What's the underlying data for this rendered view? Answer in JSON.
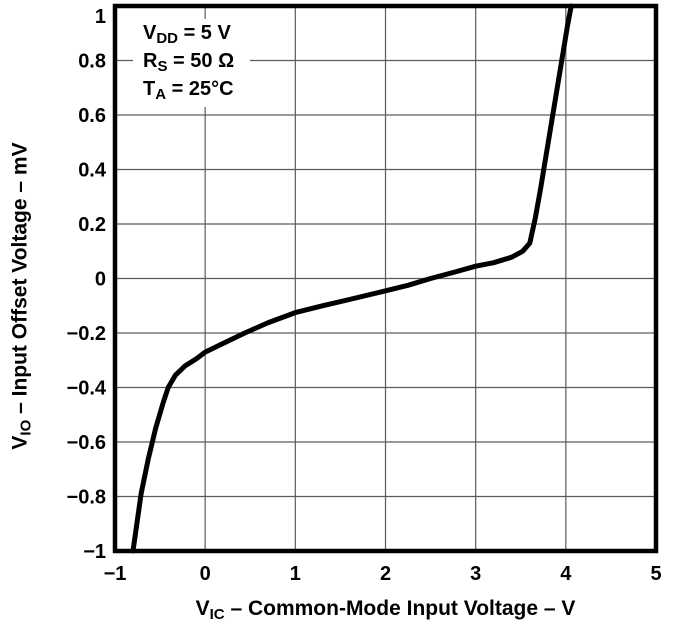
{
  "figure": {
    "background": "#ffffff",
    "conditions": [
      {
        "sym": "V",
        "sub": "DD",
        "rest": " = 5 V"
      },
      {
        "sym": "R",
        "sub": "S",
        "rest": " = 50 Ω"
      },
      {
        "sym": "T",
        "sub": "A",
        "rest": " = 25°C"
      }
    ],
    "y_title": {
      "sym": "V",
      "sub": "IO",
      "rest": " – Input Offset Voltage – mV"
    },
    "x_title": {
      "sym": "V",
      "sub": "IC",
      "rest": " – Common-Mode Input Voltage – V"
    }
  },
  "chart_data": {
    "type": "line",
    "title": "",
    "xlabel": "VIC – Common-Mode Input Voltage – V",
    "ylabel": "VIO – Input Offset Voltage – mV",
    "xlim": [
      -1,
      5
    ],
    "ylim": [
      -1,
      1
    ],
    "grid": true,
    "legend": "none",
    "conditions": [
      "VDD = 5 V",
      "RS = 50 Ω",
      "TA = 25°C"
    ],
    "colors": {
      "curve": "#000000",
      "grid": "#5c5c5c",
      "frame": "#000000",
      "text": "#000000",
      "background": "#ffffff"
    },
    "x_ticks": [
      {
        "v": -1,
        "label": "−1"
      },
      {
        "v": 0,
        "label": "0"
      },
      {
        "v": 1,
        "label": "1"
      },
      {
        "v": 2,
        "label": "2"
      },
      {
        "v": 3,
        "label": "3"
      },
      {
        "v": 4,
        "label": "4"
      },
      {
        "v": 5,
        "label": "5"
      }
    ],
    "y_ticks": [
      {
        "v": 1,
        "label": "1"
      },
      {
        "v": 0.8,
        "label": "0.8"
      },
      {
        "v": 0.6,
        "label": "0.6"
      },
      {
        "v": 0.4,
        "label": "0.4"
      },
      {
        "v": 0.2,
        "label": "0.2"
      },
      {
        "v": 0,
        "label": "0"
      },
      {
        "v": -0.2,
        "label": "−0.2"
      },
      {
        "v": -0.4,
        "label": "−0.4"
      },
      {
        "v": -0.6,
        "label": "−0.6"
      },
      {
        "v": -0.8,
        "label": "−0.8"
      },
      {
        "v": -1,
        "label": "−1"
      }
    ],
    "series": [
      {
        "name": "VIO vs VIC",
        "points": [
          [
            -0.8,
            -1.0
          ],
          [
            -0.71,
            -0.79
          ],
          [
            -0.63,
            -0.66
          ],
          [
            -0.55,
            -0.55
          ],
          [
            -0.47,
            -0.46
          ],
          [
            -0.41,
            -0.4
          ],
          [
            -0.33,
            -0.355
          ],
          [
            -0.22,
            -0.32
          ],
          [
            -0.1,
            -0.295
          ],
          [
            0.0,
            -0.27
          ],
          [
            0.2,
            -0.238
          ],
          [
            0.44,
            -0.2
          ],
          [
            0.7,
            -0.162
          ],
          [
            1.0,
            -0.125
          ],
          [
            1.3,
            -0.1
          ],
          [
            1.6,
            -0.077
          ],
          [
            2.0,
            -0.045
          ],
          [
            2.25,
            -0.025
          ],
          [
            2.5,
            0.0
          ],
          [
            2.75,
            0.022
          ],
          [
            3.0,
            0.045
          ],
          [
            3.2,
            0.058
          ],
          [
            3.4,
            0.078
          ],
          [
            3.52,
            0.1
          ],
          [
            3.6,
            0.13
          ],
          [
            3.66,
            0.22
          ],
          [
            3.72,
            0.33
          ],
          [
            3.78,
            0.45
          ],
          [
            3.84,
            0.57
          ],
          [
            3.9,
            0.69
          ],
          [
            3.96,
            0.81
          ],
          [
            4.02,
            0.93
          ],
          [
            4.06,
            1.0
          ]
        ]
      }
    ]
  }
}
